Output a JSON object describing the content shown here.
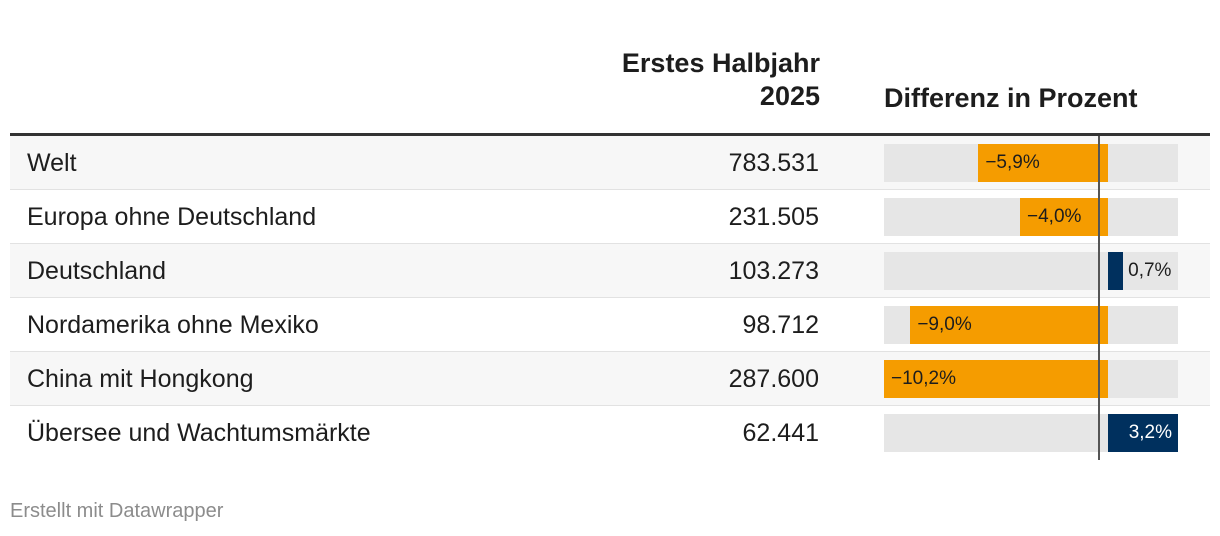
{
  "chart_data": {
    "type": "table",
    "columns": [
      "",
      "Erstes Halbjahr 2025",
      "Differenz in Prozent"
    ],
    "header": {
      "value_line1": "Erstes Halbjahr",
      "value_line2": "2025",
      "diff": "Differenz in Prozent"
    },
    "rows": [
      {
        "label": "Welt",
        "value": "783.531",
        "diff": -5.9,
        "diff_label": "−5,9%"
      },
      {
        "label": "Europa ohne Deutschland",
        "value": "231.505",
        "diff": -4.0,
        "diff_label": "−4,0%"
      },
      {
        "label": "Deutschland",
        "value": "103.273",
        "diff": 0.7,
        "diff_label": "0,7%"
      },
      {
        "label": "Nordamerika ohne Mexiko",
        "value": "98.712",
        "diff": -9.0,
        "diff_label": "−9,0%"
      },
      {
        "label": "China mit Hongkong",
        "value": "287.600",
        "diff": -10.2,
        "diff_label": "−10,2%"
      },
      {
        "label": "Übersee und Wachtumsmärkte",
        "value": "62.441",
        "diff": 3.2,
        "diff_label": "3,2%"
      }
    ],
    "diff_range": [
      -10.2,
      3.2
    ],
    "colors": {
      "negative": "#f59c00",
      "positive": "#00305e"
    }
  },
  "footer": {
    "credit": "Erstellt mit Datawrapper"
  }
}
